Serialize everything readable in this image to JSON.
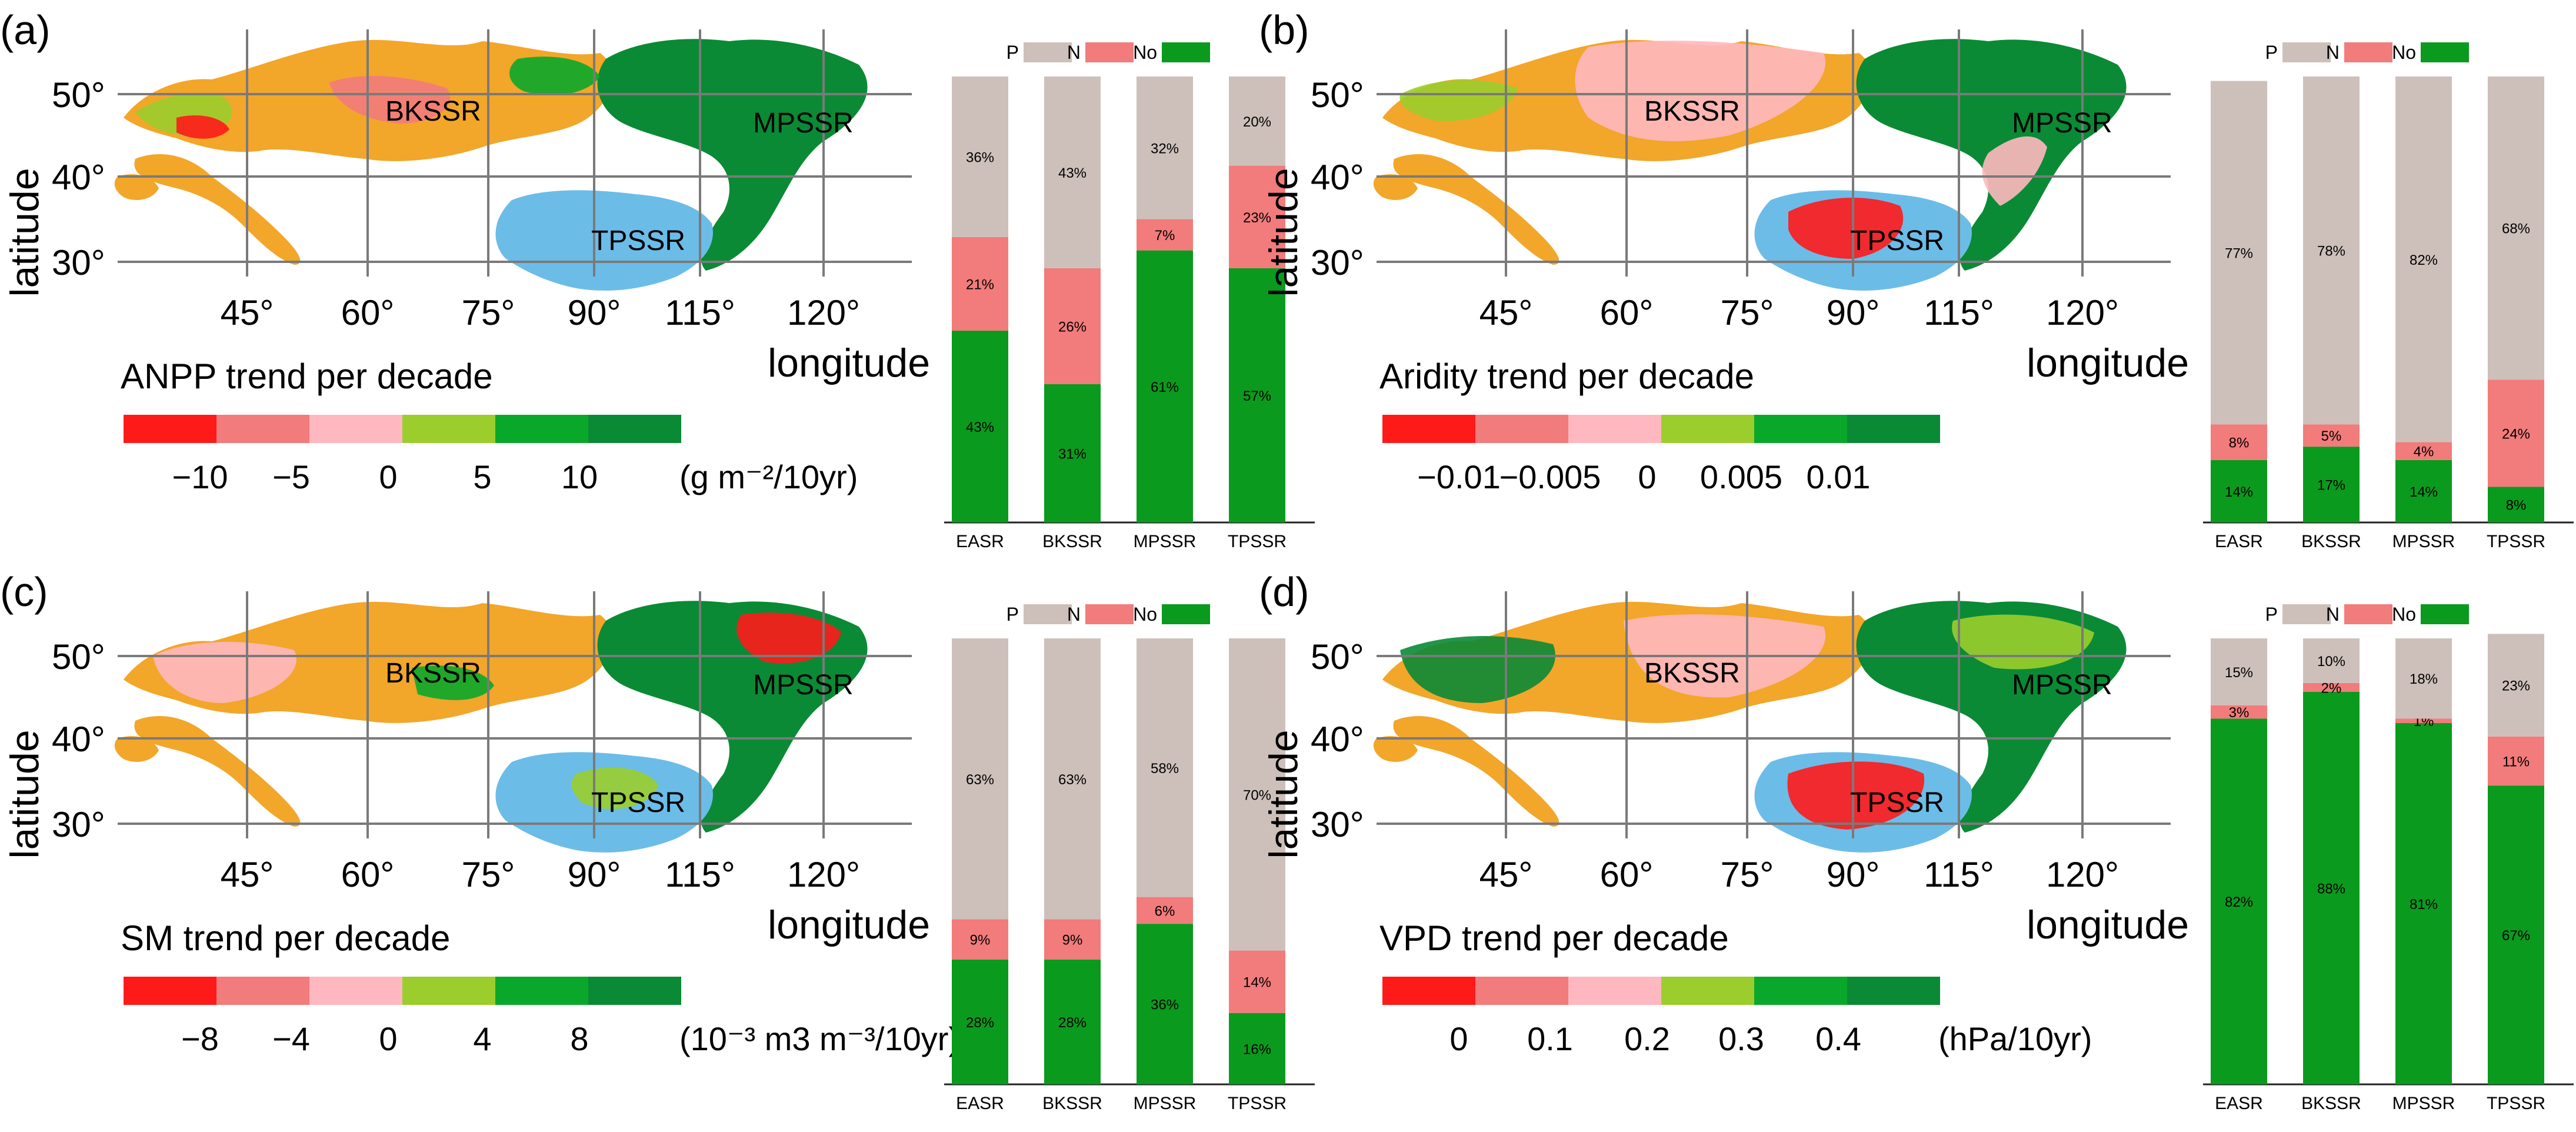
{
  "colors": {
    "P": "#cdc0ba",
    "N": "#f27b7b",
    "No": "#0a9a1d",
    "scale": [
      "#ff1a1a",
      "#f27b7b",
      "#ffb8c0",
      "#9bcd2d",
      "#0aa82a",
      "#0a8a35"
    ],
    "map_orange": "#f2a62a",
    "map_blue": "#6cbce8",
    "grid": "#7a7a7a"
  },
  "legend_labels": {
    "P": "P",
    "N": "N",
    "No": "No"
  },
  "region_labels": [
    "BKSSR",
    "MPSSR",
    "TPSSR"
  ],
  "lat_ticks": [
    "50°",
    "40°",
    "30°"
  ],
  "lon_ticks": [
    "45°",
    "60°",
    "75°",
    "90°",
    "115°",
    "120°"
  ],
  "lat_title": "latitude",
  "lon_title": "longitude",
  "panels": [
    {
      "id": "a",
      "panel_label": "(a)",
      "map_title": "ANPP trend per decade",
      "scale_ticks": [
        "−10",
        "−5",
        "0",
        "5",
        "10"
      ],
      "unit": "(g m⁻²/10yr)"
    },
    {
      "id": "b",
      "panel_label": "(b)",
      "map_title": "Aridity trend per decade",
      "scale_ticks": [
        "−0.01",
        "−0.005",
        "0",
        "0.005",
        "0.01"
      ],
      "unit": ""
    },
    {
      "id": "c",
      "panel_label": "(c)",
      "map_title": "SM trend per decade",
      "scale_ticks": [
        "−8",
        "−4",
        "0",
        "4",
        "8"
      ],
      "unit": "(10⁻³ m3 m⁻³/10yr)"
    },
    {
      "id": "d",
      "panel_label": "(d)",
      "map_title": "VPD trend per decade",
      "scale_ticks": [
        "0",
        "0.1",
        "0.2",
        "0.3",
        "0.4"
      ],
      "unit": "(hPa/10yr)"
    }
  ],
  "chart_data": [
    {
      "type": "bar",
      "stacked": true,
      "panel": "a",
      "categories": [
        "EASR",
        "BKSSR",
        "MPSSR",
        "TPSSR"
      ],
      "series": [
        {
          "name": "No",
          "values": [
            43,
            31,
            61,
            57
          ]
        },
        {
          "name": "N",
          "values": [
            21,
            26,
            7,
            23
          ]
        },
        {
          "name": "P",
          "values": [
            36,
            43,
            32,
            20
          ]
        }
      ],
      "ylim": [
        0,
        100
      ],
      "legend": "top"
    },
    {
      "type": "bar",
      "stacked": true,
      "panel": "b",
      "categories": [
        "EASR",
        "BKSSR",
        "MPSSR",
        "TPSSR"
      ],
      "series": [
        {
          "name": "No",
          "values": [
            14,
            17,
            14,
            8
          ]
        },
        {
          "name": "N",
          "values": [
            8,
            5,
            4,
            24
          ]
        },
        {
          "name": "P",
          "values": [
            77,
            78,
            82,
            68
          ]
        }
      ],
      "ylim": [
        0,
        100
      ],
      "legend": "top"
    },
    {
      "type": "bar",
      "stacked": true,
      "panel": "c",
      "categories": [
        "EASR",
        "BKSSR",
        "MPSSR",
        "TPSSR"
      ],
      "series": [
        {
          "name": "No",
          "values": [
            28,
            28,
            36,
            16
          ]
        },
        {
          "name": "N",
          "values": [
            9,
            9,
            6,
            14
          ]
        },
        {
          "name": "P",
          "values": [
            63,
            63,
            58,
            70
          ]
        }
      ],
      "ylim": [
        0,
        100
      ],
      "legend": "top"
    },
    {
      "type": "bar",
      "stacked": true,
      "panel": "d",
      "categories": [
        "EASR",
        "BKSSR",
        "MPSSR",
        "TPSSR"
      ],
      "series": [
        {
          "name": "No",
          "values": [
            82,
            88,
            81,
            67
          ]
        },
        {
          "name": "N",
          "values": [
            3,
            2,
            1,
            11
          ]
        },
        {
          "name": "P",
          "values": [
            15,
            10,
            18,
            23
          ]
        }
      ],
      "ylim": [
        0,
        100
      ],
      "legend": "top"
    }
  ]
}
